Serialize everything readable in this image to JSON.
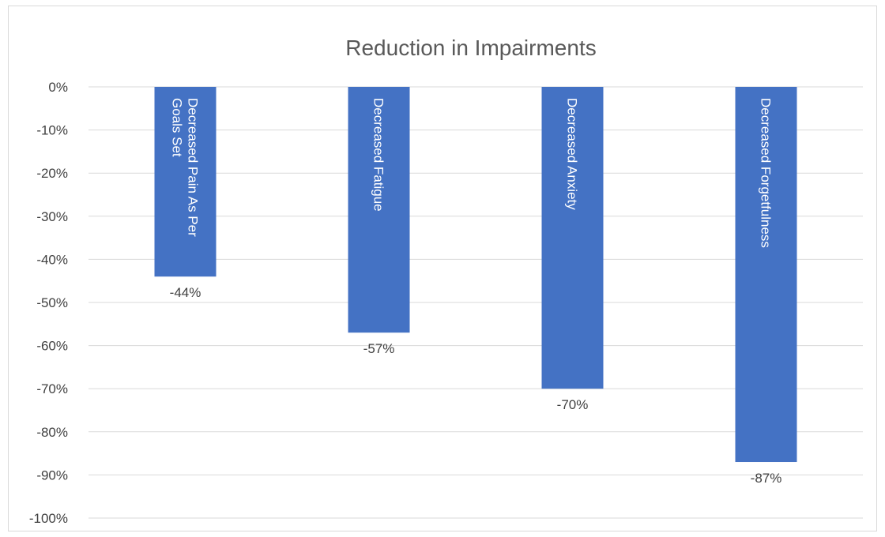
{
  "chart_data": {
    "type": "bar",
    "orientation": "vertical",
    "title": "Reduction in Impairments",
    "xlabel": "",
    "ylabel": "",
    "categories": [
      [
        "Decreased Pain As Per",
        "Goals Set"
      ],
      [
        "Decreased Fatigue"
      ],
      [
        "Decreased Anxiety"
      ],
      [
        "Decreased Forgetfulness"
      ]
    ],
    "values": [
      -0.44,
      -0.57,
      -0.7,
      -0.87
    ],
    "data_labels": [
      "-44%",
      "-57%",
      "-70%",
      "-87%"
    ],
    "ylim": [
      -1.0,
      0.0
    ],
    "yticks": [
      "0%",
      "-10%",
      "-20%",
      "-30%",
      "-40%",
      "-50%",
      "-60%",
      "-70%",
      "-80%",
      "-90%",
      "-100%"
    ],
    "grid": true,
    "legend": "none",
    "colors": {
      "bar": "#4472c4",
      "grid": "#d9d9d9",
      "title": "#595959",
      "tick_text": "#404040",
      "bar_label": "#ffffff"
    }
  }
}
